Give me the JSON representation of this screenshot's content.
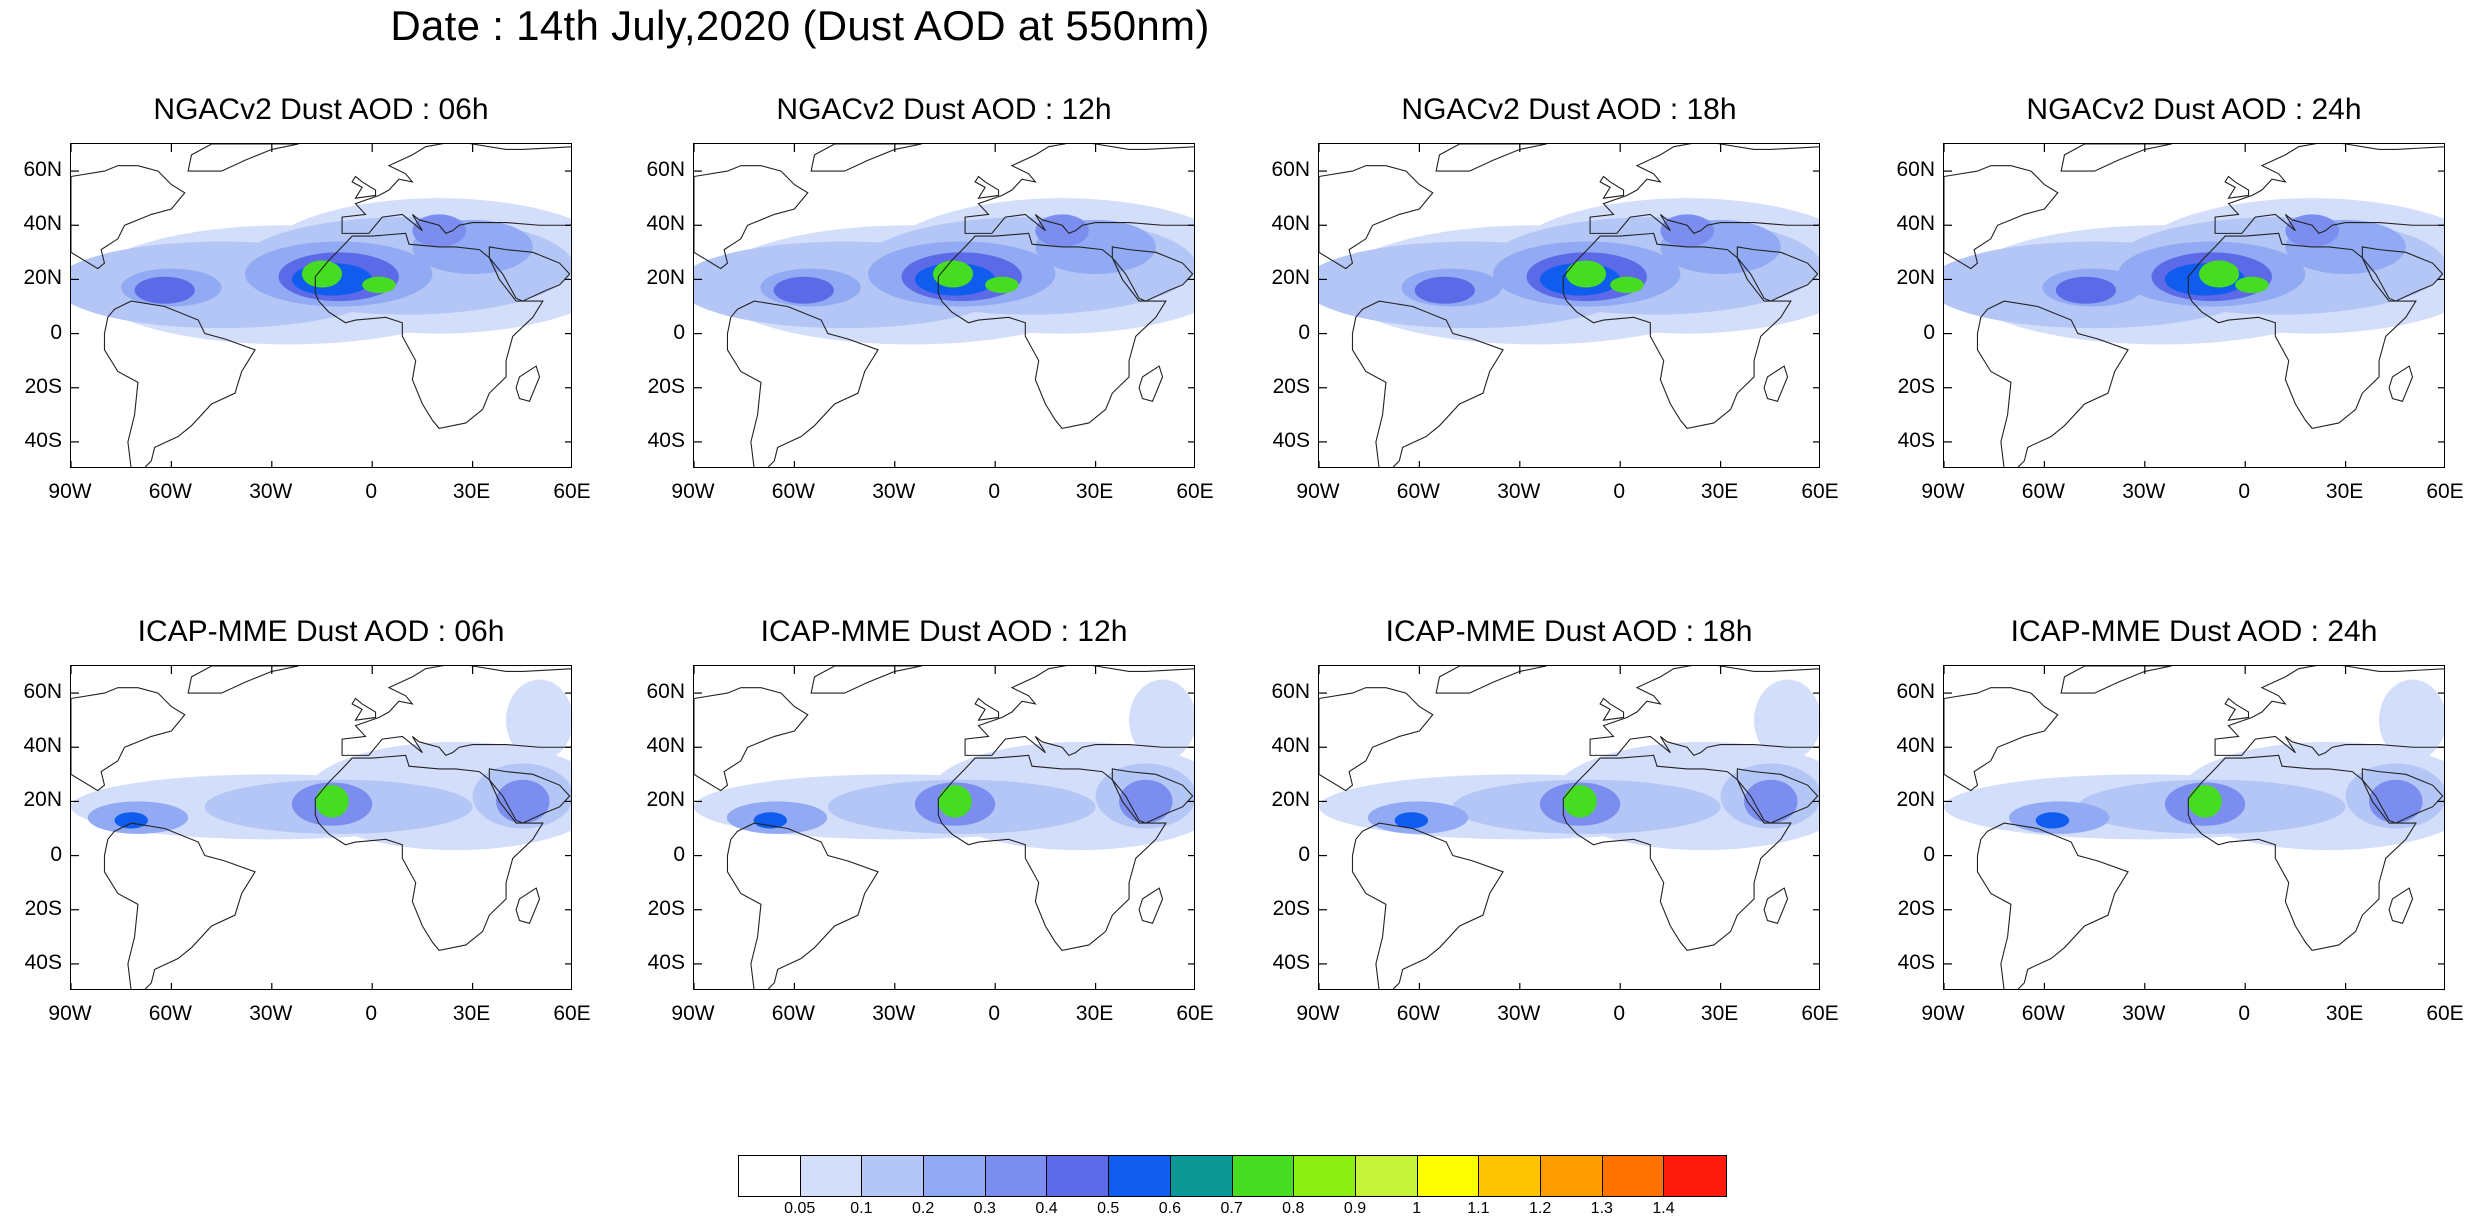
{
  "title": "Date : 14th July,2020 (Dust AOD at 550nm)",
  "axes": {
    "y_labels": [
      "60N",
      "40N",
      "20N",
      "0",
      "20S",
      "40S"
    ],
    "y_values": [
      60,
      40,
      20,
      0,
      -20,
      -40
    ],
    "x_labels": [
      "90W",
      "60W",
      "30W",
      "0",
      "30E",
      "60E"
    ],
    "x_values": [
      -90,
      -60,
      -30,
      0,
      30,
      60
    ],
    "lat_range": [
      -50,
      70
    ],
    "lon_range": [
      -90,
      60
    ]
  },
  "panels": [
    {
      "title": "NGACv2 Dust AOD : 06h",
      "model": "NGACv2",
      "hour": 6
    },
    {
      "title": "NGACv2 Dust AOD : 12h",
      "model": "NGACv2",
      "hour": 12
    },
    {
      "title": "NGACv2 Dust AOD : 18h",
      "model": "NGACv2",
      "hour": 18
    },
    {
      "title": "NGACv2 Dust AOD : 24h",
      "model": "NGACv2",
      "hour": 24
    },
    {
      "title": "ICAP-MME Dust AOD : 06h",
      "model": "ICAP-MME",
      "hour": 6
    },
    {
      "title": "ICAP-MME Dust AOD : 12h",
      "model": "ICAP-MME",
      "hour": 12
    },
    {
      "title": "ICAP-MME Dust AOD : 18h",
      "model": "ICAP-MME",
      "hour": 18
    },
    {
      "title": "ICAP-MME Dust AOD : 24h",
      "model": "ICAP-MME",
      "hour": 24
    }
  ],
  "colorbar": {
    "levels": [
      "0.05",
      "0.1",
      "0.2",
      "0.3",
      "0.4",
      "0.5",
      "0.6",
      "0.7",
      "0.8",
      "0.9",
      "1",
      "1.1",
      "1.2",
      "1.3",
      "1.4"
    ],
    "colors": [
      "#ffffff",
      "#d3defa",
      "#b3c6f6",
      "#91aaf3",
      "#7b8ef0",
      "#5c6ae8",
      "#0f5cef",
      "#0c9694",
      "#46dc22",
      "#8cee12",
      "#c6f43a",
      "#ffff00",
      "#ffc400",
      "#ff9c00",
      "#ff7200",
      "#ff1c0c"
    ]
  }
}
